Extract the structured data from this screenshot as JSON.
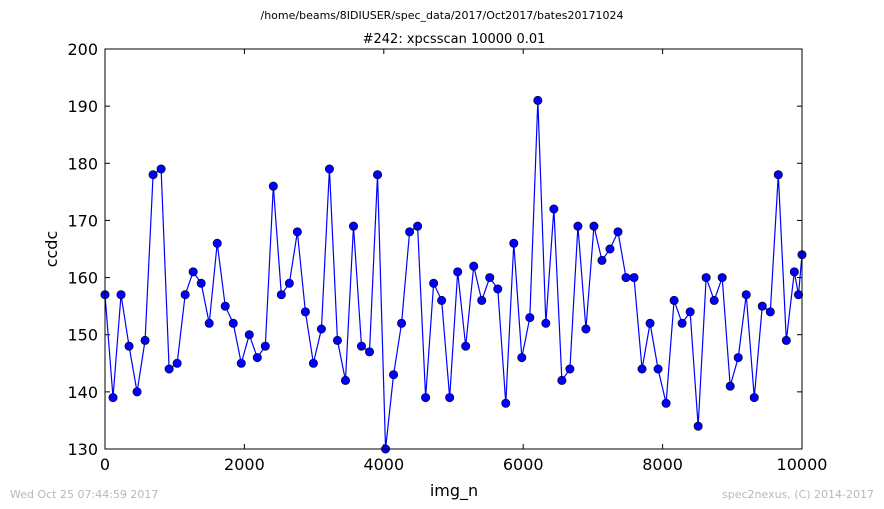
{
  "figure": {
    "suptitle": "/home/beams/8IDIUSER/spec_data/2017/Oct2017/bates20171024",
    "footer_left": "Wed Oct 25 07:44:59 2017",
    "footer_right": "spec2nexus, (C) 2014-2017"
  },
  "chart_data": {
    "type": "line",
    "title": "#242: xpcsscan 10000 0.01",
    "xlabel": "img_n",
    "ylabel": "ccdc",
    "xlim": [
      0,
      10000
    ],
    "ylim": [
      130,
      200
    ],
    "xticks": [
      0,
      2000,
      4000,
      6000,
      8000,
      10000
    ],
    "yticks": [
      130,
      140,
      150,
      160,
      170,
      180,
      190,
      200
    ],
    "grid": false,
    "marker": "circle",
    "color": "#0000ff",
    "series": [
      {
        "x": [
          0,
          115,
          230,
          345,
          460,
          575,
          690,
          805,
          920,
          1035,
          1150,
          1265,
          1380,
          1495,
          1610,
          1725,
          1840,
          1955,
          2070,
          2185,
          2300,
          2415,
          2530,
          2645,
          2760,
          2875,
          2990,
          3105,
          3220,
          3335,
          3450,
          3565,
          3680,
          3795,
          3910,
          4025,
          4140,
          4255,
          4370,
          4485,
          4600,
          4715,
          4830,
          4945,
          5060,
          5175,
          5290,
          5405,
          5520,
          5635,
          5750,
          5865,
          5980,
          6095,
          6210,
          6325,
          6440,
          6555,
          6670,
          6785,
          6900,
          7015,
          7130,
          7245,
          7360,
          7475,
          7590,
          7705,
          7820,
          7935,
          8050,
          8165,
          8280,
          8395,
          8510,
          8625,
          8740,
          8855,
          8970,
          9085,
          9200,
          9315,
          9430,
          9545,
          9660,
          9775,
          9890,
          9950,
          10000
        ],
        "values": [
          157,
          139,
          157,
          148,
          140,
          149,
          178,
          179,
          144,
          145,
          157,
          161,
          159,
          152,
          166,
          155,
          152,
          145,
          150,
          146,
          148,
          176,
          157,
          159,
          168,
          154,
          145,
          151,
          179,
          149,
          142,
          169,
          148,
          147,
          178,
          130,
          143,
          152,
          168,
          169,
          139,
          159,
          156,
          139,
          161,
          148,
          162,
          156,
          160,
          158,
          138,
          166,
          146,
          153,
          191,
          152,
          172,
          142,
          144,
          169,
          151,
          169,
          163,
          165,
          168,
          160,
          160,
          144,
          152,
          144,
          138,
          156,
          152,
          154,
          134,
          160,
          156,
          160,
          141,
          146,
          157,
          139,
          155,
          154,
          178,
          149,
          161,
          157,
          164
        ]
      }
    ]
  }
}
